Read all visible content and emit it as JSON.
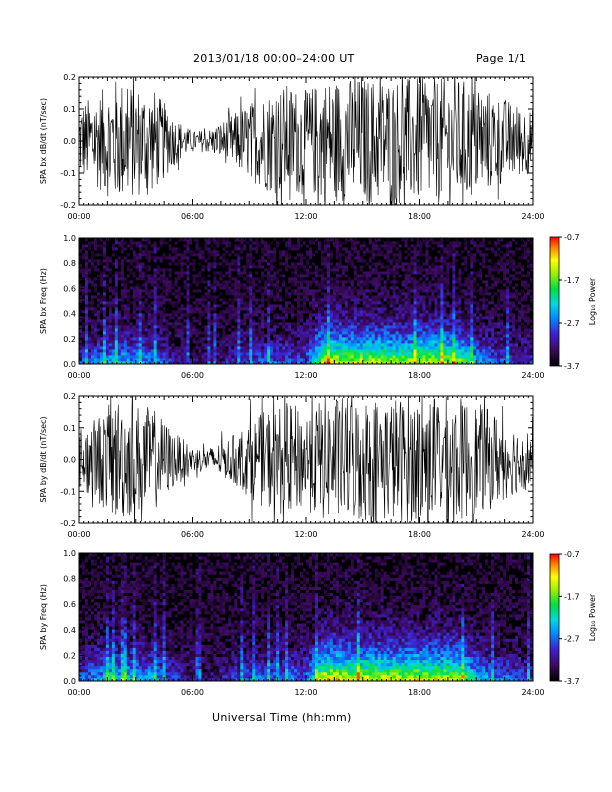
{
  "header": {
    "title": "2013/01/18  00:00–24:00 UT",
    "page": "Page 1/1"
  },
  "xlabel": "Universal Time (hh:mm)",
  "colors": {
    "axis": "#000000",
    "trace": "#000000",
    "background": "#ffffff"
  },
  "chart_data": [
    {
      "type": "line",
      "ylabel": "SPA bx dB/dt (nT/sec)",
      "xlim": [
        0,
        24
      ],
      "ylim": [
        -0.2,
        0.2
      ],
      "xticks": [
        "00:00",
        "06:00",
        "12:00",
        "18:00",
        "24:00"
      ],
      "yticks": [
        "-0.2",
        "-0.1",
        "0.0",
        "0.1",
        "0.2"
      ],
      "envelope": {
        "x": [
          0,
          1,
          2,
          3,
          4,
          5,
          6,
          7,
          8,
          9,
          10,
          11,
          12,
          13,
          14,
          15,
          16,
          17,
          18,
          19,
          20,
          21,
          22,
          23,
          24
        ],
        "amplitude": [
          0.12,
          0.15,
          0.2,
          0.18,
          0.16,
          0.08,
          0.03,
          0.04,
          0.08,
          0.12,
          0.16,
          0.18,
          0.16,
          0.2,
          0.2,
          0.2,
          0.2,
          0.2,
          0.2,
          0.2,
          0.2,
          0.18,
          0.15,
          0.12,
          0.1
        ]
      }
    },
    {
      "type": "heatmap",
      "ylabel": "SPA bx Freq (Hz)",
      "xlim": [
        0,
        24
      ],
      "ylim": [
        0,
        1.0
      ],
      "xticks": [
        "00:00",
        "06:00",
        "12:00",
        "18:00",
        "24:00"
      ],
      "yticks": [
        "0.0",
        "0.2",
        "0.4",
        "0.6",
        "0.8",
        "1.0"
      ],
      "colorbar": {
        "label": "Log₁₀ Power",
        "ticks": [
          "-0.7",
          "-1.7",
          "-2.7",
          "-3.7"
        ],
        "range": [
          -3.7,
          -0.7
        ]
      },
      "activity": {
        "x": [
          0,
          1,
          2,
          3,
          4,
          5,
          6,
          7,
          8,
          9,
          10,
          11,
          12,
          13,
          14,
          15,
          16,
          17,
          18,
          19,
          20,
          21,
          22,
          23,
          24
        ],
        "level": [
          0.3,
          0.4,
          0.5,
          0.45,
          0.4,
          0.25,
          0.15,
          0.15,
          0.25,
          0.3,
          0.35,
          0.35,
          0.35,
          0.95,
          0.85,
          0.85,
          0.85,
          0.8,
          0.85,
          0.85,
          0.8,
          0.5,
          0.35,
          0.3,
          0.25
        ]
      }
    },
    {
      "type": "line",
      "ylabel": "SPA by dB/dt (nT/sec)",
      "xlim": [
        0,
        24
      ],
      "ylim": [
        -0.2,
        0.2
      ],
      "xticks": [
        "00:00",
        "06:00",
        "12:00",
        "18:00",
        "24:00"
      ],
      "yticks": [
        "-0.2",
        "-0.1",
        "0.0",
        "0.1",
        "0.2"
      ],
      "envelope": {
        "x": [
          0,
          1,
          2,
          3,
          4,
          5,
          6,
          7,
          8,
          9,
          10,
          11,
          12,
          13,
          14,
          15,
          16,
          17,
          18,
          19,
          20,
          21,
          22,
          23,
          24
        ],
        "amplitude": [
          0.1,
          0.14,
          0.2,
          0.18,
          0.16,
          0.09,
          0.04,
          0.04,
          0.07,
          0.12,
          0.16,
          0.18,
          0.16,
          0.2,
          0.2,
          0.2,
          0.2,
          0.2,
          0.2,
          0.2,
          0.2,
          0.18,
          0.15,
          0.11,
          0.09
        ]
      }
    },
    {
      "type": "heatmap",
      "ylabel": "SPA by Freq (Hz)",
      "xlim": [
        0,
        24
      ],
      "ylim": [
        0,
        1.0
      ],
      "xticks": [
        "00:00",
        "06:00",
        "12:00",
        "18:00",
        "24:00"
      ],
      "yticks": [
        "0.0",
        "0.2",
        "0.4",
        "0.6",
        "0.8",
        "1.0"
      ],
      "colorbar": {
        "label": "Log₁₀ Power",
        "ticks": [
          "-0.7",
          "-1.7",
          "-2.7",
          "-3.7"
        ],
        "range": [
          -3.7,
          -0.7
        ]
      },
      "activity": {
        "x": [
          0,
          1,
          2,
          3,
          4,
          5,
          6,
          7,
          8,
          9,
          10,
          11,
          12,
          13,
          14,
          15,
          16,
          17,
          18,
          19,
          20,
          21,
          22,
          23,
          24
        ],
        "level": [
          0.35,
          0.45,
          0.55,
          0.5,
          0.45,
          0.3,
          0.18,
          0.18,
          0.28,
          0.35,
          0.38,
          0.38,
          0.38,
          0.95,
          0.9,
          0.9,
          0.88,
          0.85,
          0.9,
          0.88,
          0.85,
          0.55,
          0.4,
          0.35,
          0.3
        ]
      }
    }
  ]
}
